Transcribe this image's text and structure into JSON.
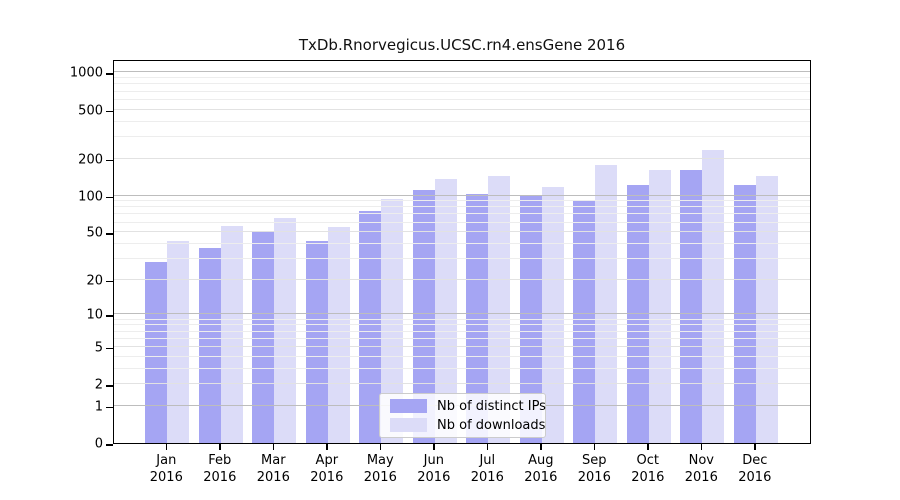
{
  "title": "TxDb.Rnorvegicus.UCSC.rn4.ensGene 2016",
  "chart_data": {
    "type": "bar",
    "title": "TxDb.Rnorvegicus.UCSC.rn4.ensGene 2016",
    "categories": [
      "Jan",
      "Feb",
      "Mar",
      "Apr",
      "May",
      "Jun",
      "Jul",
      "Aug",
      "Sep",
      "Oct",
      "Nov",
      "Dec"
    ],
    "x_year_label": "2016",
    "series": [
      {
        "name": "Nb of distinct IPs",
        "color": "#a5a5f3",
        "values": [
          28,
          37,
          50,
          42,
          75,
          110,
          102,
          100,
          92,
          123,
          161,
          122
        ]
      },
      {
        "name": "Nb of downloads",
        "color": "#dcdcf8",
        "values": [
          42,
          56,
          65,
          55,
          94,
          137,
          145,
          117,
          179,
          162,
          233,
          145
        ]
      }
    ],
    "xlabel": "",
    "ylabel": "",
    "y_ticks": [
      0,
      1,
      2,
      5,
      10,
      20,
      50,
      100,
      200,
      500,
      1000
    ],
    "y_minor_gridlines": [
      3,
      4,
      6,
      7,
      8,
      9,
      30,
      40,
      60,
      70,
      80,
      90,
      300,
      400,
      600,
      700,
      800,
      900
    ],
    "y_scale": "log(v+1)",
    "ylim": [
      0,
      1100
    ],
    "grid": true,
    "legend_position": "bottom-center"
  },
  "legend": {
    "items": [
      {
        "label": "Nb of distinct IPs",
        "color": "#a5a5f3"
      },
      {
        "label": "Nb of downloads",
        "color": "#dcdcf8"
      }
    ]
  },
  "colors": {
    "ips_bar": "#a5a5f3",
    "downloads_bar": "#dcdcf8",
    "axis": "#000000",
    "major_grid": "#bdbdbd",
    "minor_grid": "#ededed",
    "background": "#ffffff"
  }
}
